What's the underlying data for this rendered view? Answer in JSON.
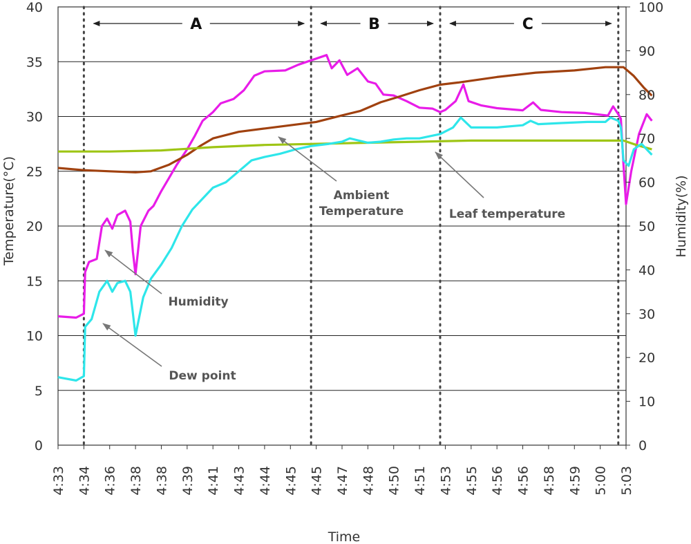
{
  "chart_data": {
    "type": "line",
    "xlabel": "Time",
    "ylabel_left": "Temperature(°C)",
    "ylabel_right": "Humidity(%)",
    "ylim_left": [
      0,
      40
    ],
    "ylim_right": [
      0,
      100
    ],
    "y_ticks_left": [
      "0",
      "5",
      "10",
      "15",
      "20",
      "25",
      "30",
      "35",
      "40"
    ],
    "y_ticks_right": [
      "0",
      "10",
      "20",
      "30",
      "40",
      "50",
      "60",
      "70",
      "80",
      "90",
      "100"
    ],
    "x_ticks": [
      "4:33",
      "4:34",
      "4:36",
      "4:38",
      "4:38",
      "4:39",
      "4:41",
      "4:43",
      "4:44",
      "4:45",
      "4:45",
      "4:47",
      "4:48",
      "4:50",
      "4:51",
      "4:53",
      "4:55",
      "4:56",
      "4:56",
      "4:58",
      "4:59",
      "5:00",
      "5:03"
    ],
    "grid": "horizontal",
    "regions": [
      {
        "label": "A",
        "x_start": 1,
        "x_end": 9.8
      },
      {
        "label": "B",
        "x_start": 9.8,
        "x_end": 14.8
      },
      {
        "label": "C",
        "x_start": 14.8,
        "x_end": 21.7
      }
    ],
    "boundaries": [
      1.0,
      9.8,
      14.8,
      21.7
    ],
    "series": [
      {
        "name": "Humidity",
        "axis": "right",
        "color": "#e81ce8",
        "points": [
          [
            0,
            29.4
          ],
          [
            0.7,
            29.1
          ],
          [
            1.0,
            30.0
          ],
          [
            1.05,
            39.5
          ],
          [
            1.2,
            41.8
          ],
          [
            1.5,
            42.5
          ],
          [
            1.7,
            50.0
          ],
          [
            1.9,
            51.7
          ],
          [
            2.1,
            49.4
          ],
          [
            2.3,
            52.5
          ],
          [
            2.6,
            53.5
          ],
          [
            2.8,
            51.0
          ],
          [
            2.9,
            44.0
          ],
          [
            3.0,
            39.0
          ],
          [
            3.2,
            50.0
          ],
          [
            3.5,
            53.5
          ],
          [
            3.7,
            54.6
          ],
          [
            4.0,
            58.0
          ],
          [
            4.3,
            61.0
          ],
          [
            4.6,
            64.0
          ],
          [
            5.0,
            67.5
          ],
          [
            5.3,
            70.6
          ],
          [
            5.6,
            74.0
          ],
          [
            6.0,
            76.0
          ],
          [
            6.3,
            78.0
          ],
          [
            6.8,
            79.0
          ],
          [
            7.2,
            81.0
          ],
          [
            7.6,
            84.3
          ],
          [
            8.0,
            85.3
          ],
          [
            8.8,
            85.5
          ],
          [
            9.3,
            86.8
          ],
          [
            9.8,
            87.8
          ],
          [
            10.4,
            89.0
          ],
          [
            10.6,
            86.0
          ],
          [
            10.9,
            87.8
          ],
          [
            11.2,
            84.5
          ],
          [
            11.6,
            86.0
          ],
          [
            12.0,
            83.0
          ],
          [
            12.3,
            82.5
          ],
          [
            12.6,
            80.0
          ],
          [
            13.0,
            79.8
          ],
          [
            13.5,
            78.5
          ],
          [
            14.0,
            77.0
          ],
          [
            14.5,
            76.8
          ],
          [
            14.8,
            76.0
          ],
          [
            15.0,
            76.5
          ],
          [
            15.4,
            78.5
          ],
          [
            15.7,
            82.3
          ],
          [
            15.9,
            78.5
          ],
          [
            16.4,
            77.5
          ],
          [
            17.0,
            76.9
          ],
          [
            18.0,
            76.4
          ],
          [
            18.4,
            78.2
          ],
          [
            18.7,
            76.5
          ],
          [
            19.5,
            76.0
          ],
          [
            20.4,
            75.8
          ],
          [
            21.3,
            75.2
          ],
          [
            21.5,
            77.3
          ],
          [
            21.7,
            75.5
          ],
          [
            21.8,
            74.5
          ],
          [
            21.9,
            64.0
          ],
          [
            22.0,
            55.0
          ],
          [
            22.2,
            62.5
          ],
          [
            22.5,
            71.0
          ],
          [
            22.8,
            75.5
          ],
          [
            23.0,
            74.0
          ]
        ]
      },
      {
        "name": "Ambient Temperature",
        "axis": "left",
        "color": "#a0410f",
        "points": [
          [
            0,
            25.3
          ],
          [
            1.0,
            25.1
          ],
          [
            2.0,
            25.0
          ],
          [
            3.0,
            24.9
          ],
          [
            3.6,
            25.0
          ],
          [
            4.3,
            25.6
          ],
          [
            5.0,
            26.5
          ],
          [
            5.5,
            27.3
          ],
          [
            6.0,
            28.0
          ],
          [
            7.0,
            28.6
          ],
          [
            8.0,
            28.9
          ],
          [
            9.0,
            29.2
          ],
          [
            10.0,
            29.5
          ],
          [
            11.0,
            30.1
          ],
          [
            11.7,
            30.5
          ],
          [
            12.5,
            31.3
          ],
          [
            13.2,
            31.8
          ],
          [
            14.0,
            32.4
          ],
          [
            14.8,
            32.9
          ],
          [
            15.5,
            33.1
          ],
          [
            17.0,
            33.6
          ],
          [
            18.5,
            34.0
          ],
          [
            20.0,
            34.2
          ],
          [
            21.2,
            34.5
          ],
          [
            21.9,
            34.5
          ],
          [
            22.3,
            33.7
          ],
          [
            22.7,
            32.6
          ],
          [
            23.0,
            31.9
          ]
        ]
      },
      {
        "name": "Leaf temperature",
        "axis": "left",
        "color": "#9ec515",
        "points": [
          [
            0,
            26.8
          ],
          [
            2.0,
            26.8
          ],
          [
            4.0,
            26.9
          ],
          [
            6.0,
            27.2
          ],
          [
            8.0,
            27.4
          ],
          [
            10.0,
            27.5
          ],
          [
            12.0,
            27.6
          ],
          [
            14.0,
            27.7
          ],
          [
            16.0,
            27.8
          ],
          [
            18.0,
            27.8
          ],
          [
            20.0,
            27.8
          ],
          [
            21.9,
            27.8
          ],
          [
            22.4,
            27.4
          ],
          [
            23.0,
            27.0
          ]
        ]
      },
      {
        "name": "Dew point",
        "axis": "left",
        "color": "#2ee6ea",
        "points": [
          [
            0,
            6.2
          ],
          [
            0.7,
            5.9
          ],
          [
            1.0,
            6.3
          ],
          [
            1.05,
            10.8
          ],
          [
            1.3,
            11.5
          ],
          [
            1.6,
            14.0
          ],
          [
            1.9,
            15.0
          ],
          [
            2.1,
            14.0
          ],
          [
            2.3,
            14.8
          ],
          [
            2.6,
            15.0
          ],
          [
            2.8,
            14.0
          ],
          [
            2.9,
            12.0
          ],
          [
            3.0,
            10.0
          ],
          [
            3.3,
            13.5
          ],
          [
            3.6,
            15.2
          ],
          [
            4.0,
            16.5
          ],
          [
            4.4,
            18.0
          ],
          [
            4.8,
            20.0
          ],
          [
            5.2,
            21.5
          ],
          [
            5.6,
            22.5
          ],
          [
            6.0,
            23.5
          ],
          [
            6.5,
            24.0
          ],
          [
            7.0,
            25.0
          ],
          [
            7.5,
            26.0
          ],
          [
            8.0,
            26.3
          ],
          [
            8.6,
            26.6
          ],
          [
            9.2,
            27.0
          ],
          [
            9.8,
            27.3
          ],
          [
            10.5,
            27.5
          ],
          [
            11.0,
            27.7
          ],
          [
            11.3,
            28.0
          ],
          [
            12.0,
            27.6
          ],
          [
            12.5,
            27.7
          ],
          [
            13.0,
            27.9
          ],
          [
            13.5,
            28.0
          ],
          [
            14.0,
            28.0
          ],
          [
            14.8,
            28.4
          ],
          [
            15.3,
            29.0
          ],
          [
            15.6,
            29.9
          ],
          [
            16.0,
            29.0
          ],
          [
            17.0,
            29.0
          ],
          [
            18.0,
            29.2
          ],
          [
            18.3,
            29.6
          ],
          [
            18.6,
            29.3
          ],
          [
            19.5,
            29.4
          ],
          [
            20.5,
            29.5
          ],
          [
            21.2,
            29.5
          ],
          [
            21.4,
            29.9
          ],
          [
            21.7,
            29.6
          ],
          [
            21.8,
            29.0
          ],
          [
            21.9,
            26.0
          ],
          [
            22.1,
            25.5
          ],
          [
            22.3,
            27.0
          ],
          [
            22.6,
            27.5
          ],
          [
            23.0,
            26.5
          ]
        ]
      }
    ],
    "annotations": [
      {
        "lines": [
          "Ambient",
          "Temperature"
        ],
        "target_series": "Ambient Temperature"
      },
      {
        "lines": [
          "Leaf temperature"
        ],
        "target_series": "Leaf temperature"
      },
      {
        "lines": [
          "Humidity"
        ],
        "target_series": "Humidity"
      },
      {
        "lines": [
          "Dew point"
        ],
        "target_series": "Dew point"
      }
    ]
  }
}
